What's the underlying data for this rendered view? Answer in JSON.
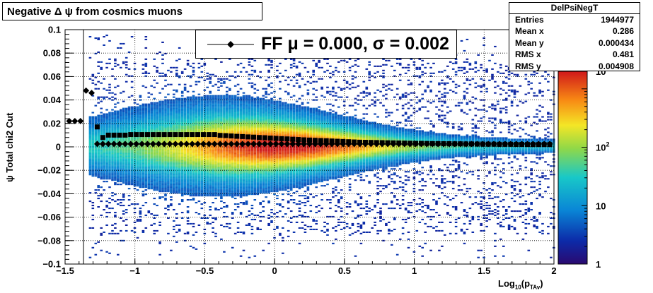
{
  "title": "Negative Δ ψ from cosmics muons",
  "stats": {
    "name": "DelPsiNegT",
    "rows": [
      {
        "label": "Entries",
        "value": "1944977"
      },
      {
        "label": "Mean x",
        "value": "0.286"
      },
      {
        "label": "Mean y",
        "value": "0.000434"
      },
      {
        "label": "RMS x",
        "value": "0.481"
      },
      {
        "label": "RMS y",
        "value": "0.004908"
      }
    ]
  },
  "legend": {
    "text": "FF μ =  0.000, σ =   0.002"
  },
  "axes": {
    "ylabel": "ψ  Total chi2 Cut",
    "xlabel_main": "Log",
    "xlabel_sub": "10",
    "xlabel_rest": "(p",
    "xlabel_sub2": "TAv",
    "xlabel_close": ")"
  },
  "colors": {
    "markers": "#000000"
  },
  "chart_data": {
    "type": "heatmap",
    "xlim": [
      -1.5,
      2
    ],
    "ylim": [
      -0.1,
      0.1
    ],
    "x_ticks": [
      "−1.5",
      "−1",
      "−0.5",
      "0",
      "0.5",
      "1",
      "1.5",
      "2"
    ],
    "y_ticks": [
      "−0.1",
      "−0.08",
      "−0.06",
      "−0.04",
      "−0.02",
      "0",
      "0.02",
      "0.04",
      "0.06",
      "0.08",
      "0.1"
    ],
    "z_scale": "log",
    "z_ticks": [
      "1",
      "10",
      "10²",
      "10"
    ],
    "grid": true,
    "series_mean": {
      "x": [
        -1.47,
        -1.43,
        -1.39,
        -1.35,
        -1.31,
        -1.27,
        -1.23,
        -1.19,
        -1.15,
        -1.11,
        -1.07,
        -1.03,
        -0.99,
        -0.95,
        -0.91,
        -0.87,
        -0.83,
        -0.79,
        -0.75,
        -0.71,
        -0.67,
        -0.63,
        -0.59,
        -0.55,
        -0.51,
        -0.47,
        -0.43,
        -0.39,
        -0.35,
        -0.31,
        -0.27,
        -0.23,
        -0.19,
        -0.15,
        -0.11,
        -0.07,
        -0.03,
        0.01,
        0.05,
        0.09,
        0.13,
        0.17,
        0.21,
        0.25,
        0.29,
        0.33,
        0.37,
        0.41,
        0.45,
        0.49,
        0.53,
        0.57,
        0.61,
        0.65,
        0.69,
        0.73,
        0.77,
        0.81,
        0.85,
        0.89,
        0.93,
        0.97,
        1.01,
        1.05,
        1.09,
        1.13,
        1.17,
        1.21,
        1.25,
        1.29,
        1.33,
        1.37,
        1.41,
        1.45,
        1.49,
        1.53,
        1.57,
        1.61,
        1.65,
        1.69,
        1.73,
        1.77,
        1.81,
        1.85,
        1.89,
        1.93,
        1.97
      ],
      "y": [
        0.022,
        0.022,
        0.022,
        0.048,
        0.046,
        0.0025,
        0.0025,
        0.0025,
        0.0025,
        0.0025,
        0.0025,
        0.0025,
        0.0025,
        0.0025,
        0.0025,
        0.0025,
        0.0025,
        0.0025,
        0.0025,
        0.0025,
        0.0025,
        0.0025,
        0.0025,
        0.0025,
        0.0025,
        0.0025,
        0.0025,
        0.0025,
        0.0025,
        0.0025,
        0.0025,
        0.0025,
        0.0025,
        0.0025,
        0.0025,
        0.0025,
        0.0025,
        0.0025,
        0.0025,
        0.0025,
        0.0025,
        0.0025,
        0.0025,
        0.0025,
        0.0025,
        0.0025,
        0.0025,
        0.0025,
        0.0025,
        0.0025,
        0.0025,
        0.0025,
        0.0025,
        0.0025,
        0.0025,
        0.0025,
        0.0025,
        0.0025,
        0.0025,
        0.0025,
        0.0025,
        0.0025,
        0.0025,
        0.0025,
        0.0025,
        0.0025,
        0.0025,
        0.0025,
        0.0025,
        0.0025,
        0.0025,
        0.0025,
        0.0025,
        0.0025,
        0.0025,
        0.0025,
        0.0025,
        0.0025,
        0.0025,
        0.0025,
        0.0025,
        0.0025,
        0.0025,
        0.0025,
        0.0025,
        0.0025,
        0.0025
      ]
    },
    "series_sigma": {
      "x": [
        -1.27,
        -1.23,
        -1.19,
        -1.15,
        -1.11,
        -1.07,
        -1.03,
        -0.99,
        -0.95,
        -0.91,
        -0.87,
        -0.83,
        -0.79,
        -0.75,
        -0.71,
        -0.67,
        -0.63,
        -0.59,
        -0.55,
        -0.51,
        -0.47,
        -0.43,
        -0.39,
        -0.35,
        -0.31,
        -0.27,
        -0.23,
        -0.19,
        -0.15,
        -0.11,
        -0.07,
        -0.03,
        0.01,
        0.05,
        0.09,
        0.13,
        0.17,
        0.21,
        0.25,
        0.29,
        0.33,
        0.37,
        0.41,
        0.45,
        0.49,
        0.53,
        0.57,
        0.61,
        0.65,
        0.69,
        0.73,
        0.77,
        0.81,
        0.85,
        0.89,
        0.93,
        0.97,
        1.01,
        1.05,
        1.09,
        1.13,
        1.17,
        1.21,
        1.25,
        1.29,
        1.33,
        1.37,
        1.41,
        1.45,
        1.49,
        1.53,
        1.57,
        1.61,
        1.65,
        1.69,
        1.73,
        1.77,
        1.81,
        1.85,
        1.89,
        1.93,
        1.97
      ],
      "y": [
        0.017,
        0.008,
        0.01,
        0.01,
        0.01,
        0.01,
        0.0105,
        0.0105,
        0.0105,
        0.0105,
        0.0105,
        0.0105,
        0.0105,
        0.0105,
        0.0105,
        0.0105,
        0.0105,
        0.0105,
        0.0105,
        0.0105,
        0.0105,
        0.0105,
        0.0098,
        0.0096,
        0.0093,
        0.009,
        0.0088,
        0.0085,
        0.0083,
        0.008,
        0.0078,
        0.0075,
        0.0072,
        0.007,
        0.0068,
        0.0065,
        0.0063,
        0.006,
        0.0058,
        0.0056,
        0.0054,
        0.0052,
        0.005,
        0.0048,
        0.0046,
        0.0044,
        0.0042,
        0.004,
        0.0039,
        0.0038,
        0.0037,
        0.0036,
        0.0035,
        0.0034,
        0.0033,
        0.0032,
        0.0031,
        0.003,
        0.003,
        0.0029,
        0.0028,
        0.0028,
        0.0027,
        0.0027,
        0.0026,
        0.0026,
        0.0025,
        0.0025,
        0.0024,
        0.0024,
        0.0023,
        0.0023,
        0.0022,
        0.0022,
        0.0022,
        0.0021,
        0.0021,
        0.002,
        0.002,
        0.002,
        0.002,
        0.002
      ]
    }
  }
}
